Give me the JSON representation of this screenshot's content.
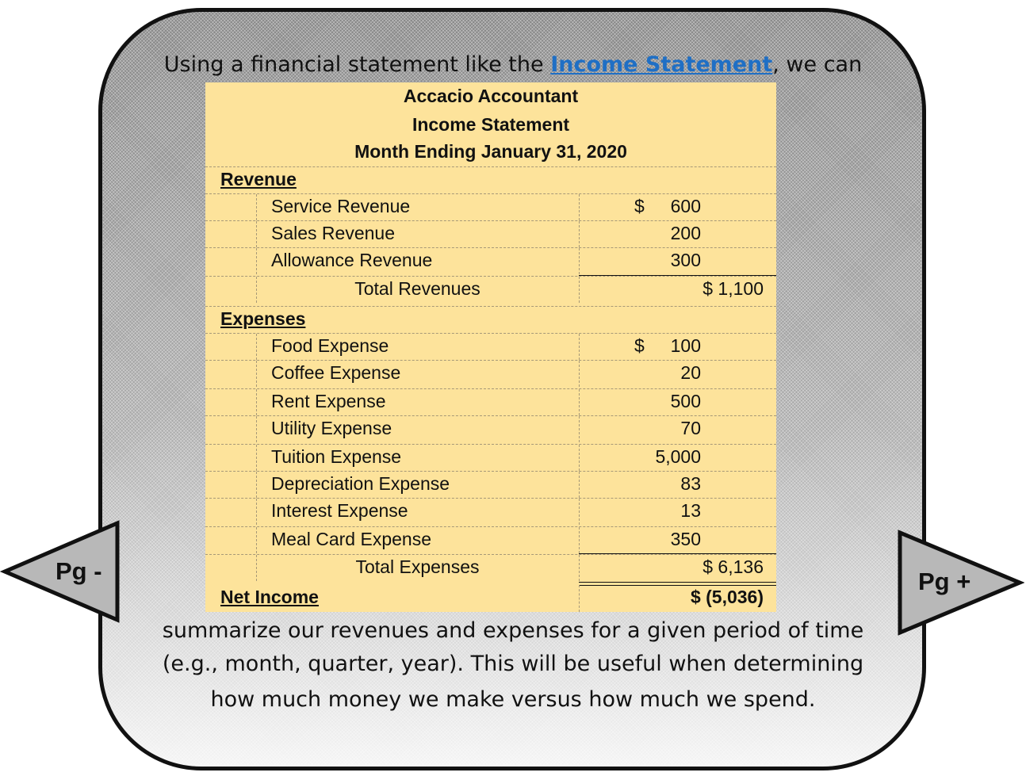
{
  "intro": {
    "before": "Using a financial statement like the ",
    "link": "Income Statement",
    "after": ", we can"
  },
  "statement": {
    "company": "Accacio Accountant",
    "title": "Income Statement",
    "period": "Month Ending January 31, 2020",
    "revenue_heading": "Revenue",
    "revenue_items": [
      {
        "label": "Service Revenue",
        "dollar": "$",
        "value": "600"
      },
      {
        "label": "Sales Revenue",
        "dollar": "",
        "value": "200"
      },
      {
        "label": "Allowance Revenue",
        "dollar": "",
        "value": "300"
      }
    ],
    "total_revenues": {
      "label": "Total Revenues",
      "value": "$ 1,100"
    },
    "expenses_heading": "Expenses",
    "expense_items": [
      {
        "label": "Food Expense",
        "dollar": "$",
        "value": "100"
      },
      {
        "label": "Coffee Expense",
        "dollar": "",
        "value": "20"
      },
      {
        "label": "Rent Expense",
        "dollar": "",
        "value": "500"
      },
      {
        "label": "Utility Expense",
        "dollar": "",
        "value": "70"
      },
      {
        "label": "Tuition Expense",
        "dollar": "",
        "value": "5,000"
      },
      {
        "label": "Depreciation Expense",
        "dollar": "",
        "value": "83"
      },
      {
        "label": "Interest Expense",
        "dollar": "",
        "value": "13"
      },
      {
        "label": "Meal Card Expense",
        "dollar": "",
        "value": "350"
      }
    ],
    "total_expenses": {
      "label": "Total Expenses",
      "value": "$ 6,136"
    },
    "net_income": {
      "label": "Net Income",
      "value": "$ (5,036)"
    }
  },
  "outro": {
    "line1": "summarize our revenues and expenses for a given period of time",
    "line2": "(e.g., month, quarter, year). This will be useful when determining",
    "line3": "how much money we make versus how much we spend."
  },
  "nav": {
    "prev_label": "Pg -",
    "next_label": "Pg +"
  }
}
